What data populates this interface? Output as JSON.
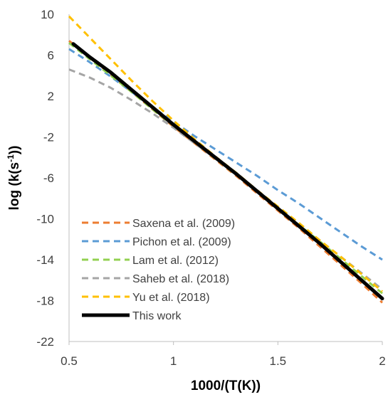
{
  "chart_data": {
    "type": "line",
    "xlabel": "1000/(T(K))",
    "ylabel": {
      "base": "log (k(s",
      "sup": "-1",
      "tail": "))"
    },
    "xlim": [
      0.5,
      2
    ],
    "ylim": [
      -22,
      10
    ],
    "xticks": [
      {
        "value": 0.5,
        "label": "0.5"
      },
      {
        "value": 1,
        "label": "1"
      },
      {
        "value": 1.5,
        "label": "1.5"
      },
      {
        "value": 2,
        "label": "2"
      }
    ],
    "yticks": [
      {
        "value": 10,
        "label": "10"
      },
      {
        "value": 6,
        "label": "6"
      },
      {
        "value": 2,
        "label": "2"
      },
      {
        "value": -2,
        "label": "-2"
      },
      {
        "value": -6,
        "label": "-6"
      },
      {
        "value": -10,
        "label": "-10"
      },
      {
        "value": -14,
        "label": "-14"
      },
      {
        "value": -18,
        "label": "-18"
      },
      {
        "value": -22,
        "label": "-22"
      }
    ],
    "grid": false,
    "legend_position": "bottom-left inside",
    "series": [
      {
        "name": "Saxena et al. (2009)",
        "color": "#ED7D31",
        "style": "dashed",
        "x": [
          0.5,
          0.6,
          0.7,
          0.8,
          0.9,
          1.0,
          1.1,
          1.2,
          1.3,
          1.4,
          1.5,
          1.6,
          1.7,
          1.8,
          1.9,
          2.0
        ],
        "y": [
          7.4,
          5.8,
          4.1,
          2.4,
          0.7,
          -1.0,
          -2.6,
          -4.2,
          -5.8,
          -7.5,
          -9.2,
          -10.9,
          -12.7,
          -14.5,
          -16.3,
          -18.2
        ]
      },
      {
        "name": "Pichon et al. (2009)",
        "color": "#5B9BD5",
        "style": "dashed",
        "x": [
          0.5,
          0.6,
          0.7,
          0.8,
          0.9,
          1.0,
          1.1,
          1.2,
          1.3,
          1.4,
          1.5,
          1.6,
          1.7,
          1.8,
          1.9,
          2.0
        ],
        "y": [
          6.6,
          5.3,
          3.9,
          2.4,
          0.9,
          -0.5,
          -1.9,
          -3.2,
          -4.5,
          -5.8,
          -7.2,
          -8.5,
          -9.9,
          -11.3,
          -12.7,
          -14.0
        ]
      },
      {
        "name": "Lam et al. (2012)",
        "color": "#92D050",
        "style": "dashed",
        "x": [
          0.5,
          0.6,
          0.7,
          0.8,
          0.9,
          1.0,
          1.1,
          1.2,
          1.3,
          1.4,
          1.5,
          1.6,
          1.7,
          1.8,
          1.9,
          2.0
        ],
        "y": [
          7.2,
          5.6,
          4.0,
          2.4,
          0.7,
          -0.9,
          -2.5,
          -4.1,
          -5.7,
          -7.3,
          -9.0,
          -10.6,
          -12.2,
          -13.9,
          -15.6,
          -17.3
        ]
      },
      {
        "name": "Saheb et al. (2018)",
        "color": "#A5A5A5",
        "style": "dashed",
        "x": [
          0.5,
          0.6,
          0.7,
          0.8,
          0.9,
          1.0,
          1.1,
          1.2,
          1.3,
          1.4,
          1.5,
          1.6,
          1.7,
          1.8,
          1.9,
          2.0
        ],
        "y": [
          4.6,
          3.8,
          2.8,
          1.6,
          0.3,
          -1.1,
          -2.6,
          -4.1,
          -5.7,
          -7.3,
          -8.9,
          -10.5,
          -12.1,
          -13.7,
          -15.3,
          -16.9
        ]
      },
      {
        "name": "Yu et al. (2018)",
        "color": "#FFC000",
        "style": "dashed",
        "x": [
          0.5,
          0.6,
          0.7,
          0.8,
          0.9,
          1.0,
          1.1,
          1.2,
          1.3,
          1.4,
          1.5,
          1.6,
          1.7,
          1.8,
          1.9,
          2.0
        ],
        "y": [
          9.8,
          7.7,
          5.6,
          3.5,
          1.5,
          -0.4,
          -2.2,
          -3.9,
          -5.5,
          -7.2,
          -8.8,
          -10.4,
          -12.1,
          -13.7,
          -15.4,
          -17.1
        ]
      },
      {
        "name": "This work",
        "color": "#000000",
        "style": "solid",
        "x": [
          0.52,
          0.6,
          0.7,
          0.8,
          0.9,
          1.0,
          1.1,
          1.2,
          1.3,
          1.4,
          1.5,
          1.6,
          1.7,
          1.8,
          1.9,
          2.0
        ],
        "y": [
          7.1,
          5.8,
          4.3,
          2.6,
          0.9,
          -0.8,
          -2.4,
          -4.0,
          -5.6,
          -7.3,
          -9.0,
          -10.7,
          -12.4,
          -14.2,
          -16.0,
          -17.8
        ]
      }
    ]
  }
}
